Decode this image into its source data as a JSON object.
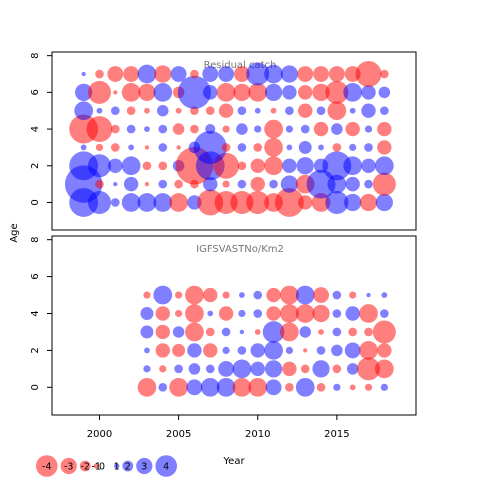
{
  "figure": {
    "ylabel": "Age",
    "xlabel": "Year",
    "x_ticks": [
      "2000",
      "2005",
      "2010",
      "2015"
    ],
    "y_ticks": [
      "0",
      "2",
      "4",
      "6",
      "8"
    ],
    "legend": [
      {
        "label": "-4",
        "value": -4
      },
      {
        "label": "-3",
        "value": -3
      },
      {
        "label": "-2",
        "value": -2
      },
      {
        "label": "-1",
        "value": -1
      },
      {
        "label": "0",
        "value": 0
      },
      {
        "label": "1",
        "value": 1
      },
      {
        "label": "2",
        "value": 2
      },
      {
        "label": "3",
        "value": 3
      },
      {
        "label": "4",
        "value": 4
      }
    ],
    "colors": {
      "positive": "#0000ff",
      "negative": "#ff0000",
      "fill_opacity": 0.5
    }
  },
  "chart_data": [
    {
      "type": "scatter",
      "title": "Residual catch",
      "xlim": [
        1997,
        2020
      ],
      "ylim": [
        -1.5,
        8.2
      ],
      "grid": false,
      "ages": [
        0,
        1,
        2,
        3,
        4,
        5,
        6,
        7
      ],
      "years": [
        1999,
        2000,
        2001,
        2002,
        2003,
        2004,
        2005,
        2006,
        2007,
        2008,
        2009,
        2010,
        2011,
        2012,
        2013,
        2014,
        2015,
        2016,
        2017,
        2018
      ],
      "residuals": [
        [
          2.0,
          1.6,
          0.6,
          1.3,
          1.3,
          1.3,
          -1.3,
          1.0,
          -1.8,
          -1.6,
          -1.6,
          -1.6,
          -1.3,
          -2.0,
          -1.0,
          -1.3,
          1.6,
          1.2,
          -1.2,
          1.2
        ],
        [
          2.6,
          -0.6,
          0.3,
          1.0,
          -0.3,
          0.6,
          -0.6,
          -0.6,
          1.0,
          -0.5,
          0.6,
          -1.0,
          0.6,
          1.2,
          -1.3,
          2.0,
          1.3,
          1.0,
          0.6,
          -1.6
        ],
        [
          2.0,
          1.6,
          1.0,
          1.3,
          -0.6,
          -0.6,
          0.8,
          -2.6,
          2.0,
          -1.8,
          -0.6,
          -1.0,
          -1.3,
          1.0,
          1.2,
          1.0,
          2.0,
          1.3,
          1.0,
          1.3
        ],
        [
          0.4,
          -0.5,
          -0.6,
          0.4,
          -0.3,
          0.6,
          -0.3,
          0.8,
          2.3,
          -0.6,
          0.6,
          -0.6,
          -1.3,
          0.4,
          0.9,
          0.4,
          -0.6,
          0.5,
          0.6,
          -1.0
        ],
        [
          -2.0,
          -1.8,
          -0.6,
          0.6,
          0.4,
          0.6,
          -0.8,
          -0.6,
          0.7,
          -0.5,
          0.8,
          0.5,
          -1.3,
          0.5,
          0.6,
          -1.0,
          0.8,
          -1.0,
          0.5,
          -1.0
        ],
        [
          1.3,
          0.4,
          0.6,
          -0.6,
          -0.4,
          0.8,
          -0.4,
          -0.6,
          -0.6,
          -1.0,
          0.6,
          0.4,
          -0.4,
          0.6,
          -1.0,
          0.6,
          -1.3,
          0.4,
          1.0,
          0.6
        ],
        [
          1.2,
          -1.6,
          -0.3,
          -1.3,
          -1.2,
          1.3,
          -0.8,
          2.3,
          1.0,
          -1.3,
          -1.2,
          -1.3,
          1.2,
          1.0,
          -1.0,
          -1.2,
          -1.6,
          1.3,
          1.0,
          0.8
        ],
        [
          0.3,
          -0.6,
          -1.1,
          -1.1,
          1.3,
          -1.2,
          1.1,
          -0.6,
          1.1,
          1.1,
          -1.1,
          1.6,
          1.3,
          1.2,
          -1.1,
          -1.1,
          -1.1,
          -1.1,
          -1.8,
          -0.6
        ]
      ]
    },
    {
      "type": "scatter",
      "title": "IGFSVASTNo/Km2",
      "xlim": [
        1997,
        2020
      ],
      "ylim": [
        -1.5,
        8.2
      ],
      "grid": false,
      "ages": [
        0,
        1,
        2,
        3,
        4,
        5
      ],
      "years": [
        2003,
        2004,
        2005,
        2006,
        2007,
        2008,
        2009,
        2010,
        2011,
        2012,
        2013,
        2014,
        2015,
        2016,
        2017,
        2018
      ],
      "residuals": [
        [
          -1.3,
          0.6,
          -1.3,
          1.1,
          1.3,
          1.3,
          -1.3,
          -1.3,
          1.1,
          -0.6,
          1.3,
          -0.6,
          0.5,
          -0.4,
          -0.5,
          0.5
        ],
        [
          0.5,
          -0.5,
          0.6,
          0.8,
          0.6,
          1.1,
          1.3,
          1.0,
          1.2,
          -1.0,
          -0.6,
          1.2,
          -0.6,
          0.8,
          -1.6,
          -1.3
        ],
        [
          0.4,
          -1.0,
          -0.9,
          1.0,
          -1.0,
          0.5,
          0.6,
          1.0,
          1.3,
          0.5,
          -0.3,
          0.6,
          0.8,
          1.1,
          -1.3,
          -1.0
        ],
        [
          0.9,
          -1.0,
          0.8,
          -1.3,
          -0.6,
          0.6,
          0.3,
          -0.4,
          1.5,
          -1.3,
          0.8,
          -0.4,
          0.6,
          -0.6,
          -0.6,
          -1.6
        ],
        [
          0.9,
          -1.0,
          -0.5,
          -1.3,
          0.4,
          -1.0,
          0.5,
          0.6,
          -1.0,
          -1.3,
          -1.3,
          -1.2,
          0.6,
          1.0,
          -1.3,
          0.6
        ],
        [
          -0.5,
          1.3,
          -0.5,
          -1.3,
          -1.0,
          -0.5,
          0.4,
          0.6,
          -1.0,
          -1.3,
          1.3,
          -1.1,
          0.6,
          -0.5,
          0.3,
          0.4
        ]
      ]
    }
  ]
}
